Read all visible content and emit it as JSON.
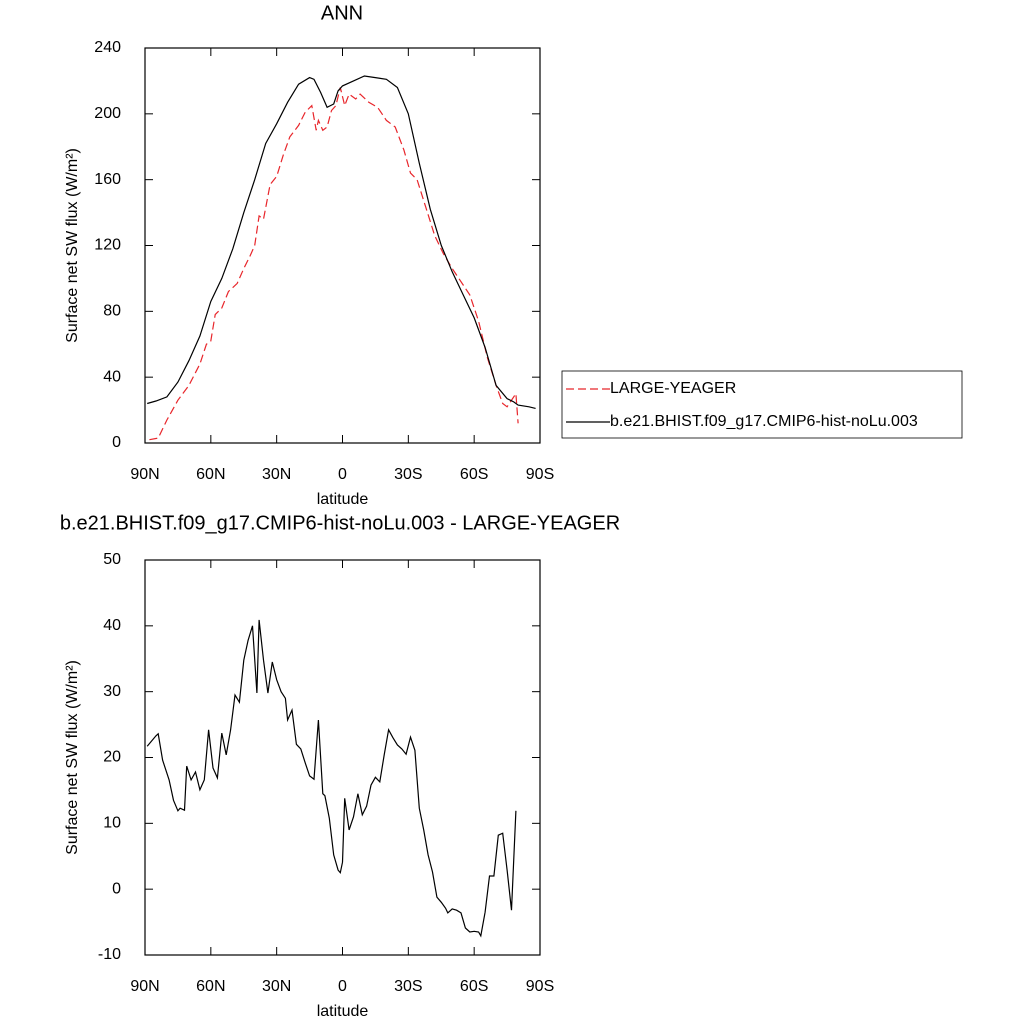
{
  "chart_data": [
    {
      "type": "line",
      "title": "ANN",
      "x_label": "latitude",
      "y_label": "Surface net SW flux (W/m²)",
      "xlim": [
        90,
        -90
      ],
      "xticks": [
        {
          "value": 90,
          "label": "90N"
        },
        {
          "value": 60,
          "label": "60N"
        },
        {
          "value": 30,
          "label": "30N"
        },
        0,
        {
          "value": -30,
          "label": "30S"
        },
        {
          "value": -60,
          "label": "60S"
        },
        {
          "value": -90,
          "label": "90S"
        }
      ],
      "ylim": [
        0,
        240
      ],
      "yticks": [
        0,
        40,
        80,
        120,
        160,
        200,
        240
      ],
      "legend": "outside-right",
      "series": [
        {
          "name": "LARGE-YEAGER",
          "color": "#e8262b",
          "dash": true,
          "x": [
            88,
            84,
            80,
            75,
            70,
            65,
            62,
            60,
            58,
            55,
            52,
            48,
            45,
            42,
            40,
            38,
            36,
            33,
            30,
            27,
            24,
            20,
            17,
            14,
            12,
            11,
            9,
            7,
            5,
            3,
            1,
            -1,
            -3,
            -6,
            -8,
            -12,
            -16,
            -20,
            -24,
            -28,
            -31,
            -34,
            -38,
            -42,
            -46,
            -50,
            -55,
            -58,
            -62,
            -66,
            -70,
            -73,
            -75,
            -78,
            -79,
            -80
          ],
          "values": [
            2,
            3,
            14,
            26,
            35,
            48,
            60,
            62,
            78,
            82,
            92,
            97,
            106,
            114,
            120,
            138,
            136,
            157,
            162,
            175,
            186,
            193,
            201,
            205,
            190,
            196,
            190,
            192,
            202,
            205,
            216,
            205,
            212,
            209,
            212,
            207,
            204,
            196,
            192,
            178,
            164,
            160,
            143,
            126,
            115,
            106,
            96,
            90,
            74,
            52,
            35,
            24,
            22,
            28,
            30,
            12
          ]
        },
        {
          "name": "b.e21.BHIST.f09_g17.CMIP6-hist-noLu.003",
          "color": "#000000",
          "dash": false,
          "x": [
            89,
            85,
            80,
            75,
            70,
            65,
            60,
            55,
            50,
            45,
            40,
            35,
            30,
            25,
            20,
            15,
            13,
            10,
            7,
            4,
            2,
            0,
            -5,
            -10,
            -15,
            -20,
            -25,
            -30,
            -35,
            -40,
            -45,
            -50,
            -55,
            -60,
            -65,
            -70,
            -75,
            -78,
            -80,
            -85,
            -88
          ],
          "values": [
            24,
            25.5,
            28,
            37,
            50,
            65,
            86,
            100,
            118,
            140,
            160,
            182,
            194,
            207,
            218,
            222,
            221,
            213,
            204,
            206,
            214,
            217,
            220,
            223,
            222,
            221,
            216,
            200,
            170,
            142,
            120,
            104,
            90,
            76,
            58,
            35,
            27,
            25,
            23,
            22,
            21
          ]
        }
      ]
    },
    {
      "type": "line",
      "title": "b.e21.BHIST.f09_g17.CMIP6-hist-noLu.003 - LARGE-YEAGER",
      "x_label": "latitude",
      "y_label": "Surface net SW flux (W/m²)",
      "xlim": [
        90,
        -90
      ],
      "xticks": [
        {
          "value": 90,
          "label": "90N"
        },
        {
          "value": 60,
          "label": "60N"
        },
        {
          "value": 30,
          "label": "30N"
        },
        0,
        {
          "value": -30,
          "label": "30S"
        },
        {
          "value": -60,
          "label": "60S"
        },
        {
          "value": -90,
          "label": "90S"
        }
      ],
      "ylim": [
        -10,
        50
      ],
      "yticks": [
        -10,
        0,
        10,
        20,
        30,
        40,
        50
      ],
      "series": [
        {
          "color": "#000000",
          "dash": false,
          "x": [
            89,
            85,
            84,
            82,
            79,
            77,
            75,
            74,
            72,
            71,
            69,
            67,
            65,
            63,
            61,
            59,
            57,
            55,
            53,
            51,
            49,
            47,
            45,
            43,
            41,
            39,
            38,
            36,
            34,
            32,
            30,
            28,
            26,
            25,
            23,
            21,
            19,
            17,
            15,
            13,
            11,
            9,
            8,
            6,
            4,
            2,
            1,
            0,
            -1,
            -3,
            -5,
            -7,
            -9,
            -11,
            -13,
            -15,
            -17,
            -19,
            -21,
            -23,
            -25,
            -27,
            -29,
            -31,
            -33,
            -35,
            -37,
            -39,
            -41,
            -43,
            -45,
            -47,
            -48,
            -50,
            -52,
            -54,
            -56,
            -58,
            -60,
            -62,
            -63,
            -65,
            -67,
            -69,
            -71,
            -73,
            -75,
            -77,
            -79
          ],
          "values": [
            21.7,
            23.3,
            23.6,
            19.6,
            16.6,
            13.5,
            11.9,
            12.3,
            12,
            18.7,
            16.6,
            17.8,
            15.1,
            16.6,
            24.2,
            18.4,
            16.9,
            23.7,
            20.4,
            24.2,
            29.5,
            28.4,
            34.8,
            37.8,
            40,
            29.8,
            40.9,
            34.8,
            29.8,
            34.5,
            31.8,
            30,
            29,
            25.7,
            27.2,
            22,
            21.3,
            19.2,
            17.2,
            16.7,
            25.7,
            14.5,
            14.2,
            10.8,
            5.2,
            2.9,
            2.5,
            4.1,
            13.8,
            9,
            11,
            14.5,
            11.3,
            12.6,
            15.8,
            17,
            16.3,
            20.4,
            24.2,
            23,
            21.9,
            21.3,
            20.5,
            23.1,
            21.1,
            12.3,
            9,
            5.2,
            2.6,
            -1.2,
            -2,
            -2.9,
            -3.6,
            -3,
            -3.2,
            -3.6,
            -5.9,
            -6.5,
            -6.4,
            -6.5,
            -7.1,
            -3.5,
            2,
            2,
            8.2,
            8.5,
            2.9,
            -3.2,
            11.9
          ]
        }
      ]
    }
  ]
}
